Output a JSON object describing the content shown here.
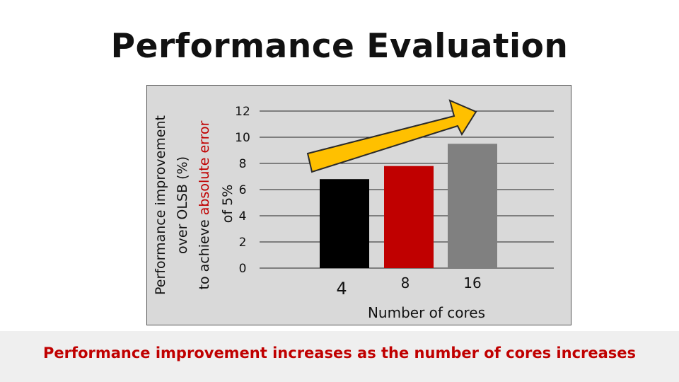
{
  "slide": {
    "title": "Performance Evaluation",
    "footer": "Performance improvement increases as the number of cores increases"
  },
  "chart_data": {
    "type": "bar",
    "categories": [
      "4",
      "8",
      "16"
    ],
    "values": [
      6.8,
      7.8,
      9.5
    ],
    "bar_colors": [
      "#000000",
      "#c00000",
      "#808080"
    ],
    "ylim": [
      0,
      12
    ],
    "yticks": [
      0,
      2,
      4,
      6,
      8,
      10,
      12
    ],
    "grid": true,
    "xlabel": "Number of cores",
    "ylabel_lines": [
      {
        "parts": [
          {
            "text": "Performance improvement",
            "highlight": false
          }
        ]
      },
      {
        "parts": [
          {
            "text": "over OLSB (%)",
            "highlight": false
          }
        ]
      },
      {
        "parts": [
          {
            "text": "to achieve ",
            "highlight": false
          },
          {
            "text": "absolute error",
            "highlight": true
          },
          {
            "text": " ",
            "highlight": false
          }
        ]
      },
      {
        "parts": [
          {
            "text": "of 5%",
            "highlight": false
          }
        ]
      }
    ],
    "annotation": {
      "type": "arrow",
      "direction": "up-right",
      "color": "#ffc000"
    }
  }
}
